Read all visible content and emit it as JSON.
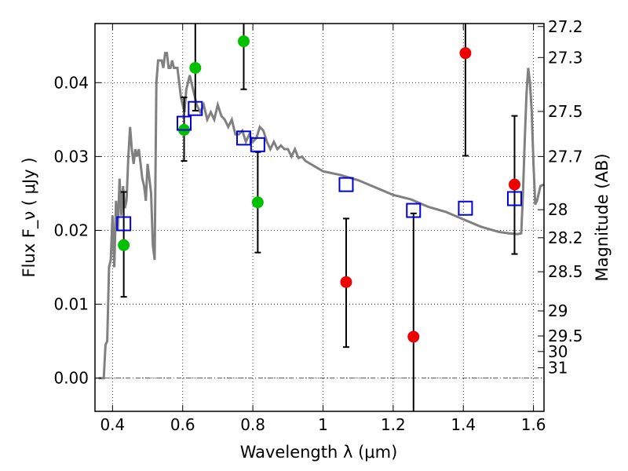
{
  "chart_data": {
    "type": "scatter",
    "xlabel": "Wavelength  λ (μm)",
    "ylabel": "Flux  F_ν  ( μJy )",
    "ylabel_right": "Magnitude (AB)",
    "xlim": [
      0.35,
      1.63
    ],
    "ylim": [
      -0.0045,
      0.048
    ],
    "xticks": [
      {
        "value": 0.4,
        "label": "0.4"
      },
      {
        "value": 0.6,
        "label": "0.6"
      },
      {
        "value": 0.8,
        "label": "0.8"
      },
      {
        "value": 1.0,
        "label": "1"
      },
      {
        "value": 1.2,
        "label": "1.2"
      },
      {
        "value": 1.4,
        "label": "1.4"
      },
      {
        "value": 1.6,
        "label": "1.6"
      }
    ],
    "yticks": [
      {
        "value": 0.0,
        "label": "0.00"
      },
      {
        "value": 0.01,
        "label": "0.01"
      },
      {
        "value": 0.02,
        "label": "0.02"
      },
      {
        "value": 0.03,
        "label": "0.03"
      },
      {
        "value": 0.04,
        "label": "0.04"
      }
    ],
    "right_ticks": [
      {
        "label": "27.2",
        "flux": 0.0476
      },
      {
        "label": "27.3",
        "flux": 0.0434
      },
      {
        "label": "27.5",
        "flux": 0.0361
      },
      {
        "label": "27.7",
        "flux": 0.03
      },
      {
        "label": "28",
        "flux": 0.0228
      },
      {
        "label": "28.2",
        "flux": 0.019
      },
      {
        "label": "28.5",
        "flux": 0.0144
      },
      {
        "label": "29",
        "flux": 0.0091
      },
      {
        "label": "29.5",
        "flux": 0.0057
      },
      {
        "label": "30",
        "flux": 0.0036
      },
      {
        "label": "31",
        "flux": 0.0014
      }
    ],
    "grid": true,
    "colors": {
      "model": "#808080",
      "green": "#00c000",
      "red": "#ee0000",
      "box": "#0000dd",
      "errorbar": "#000000"
    },
    "model_curve": {
      "x": [
        0.36,
        0.375,
        0.38,
        0.385,
        0.39,
        0.395,
        0.4,
        0.405,
        0.41,
        0.415,
        0.42,
        0.425,
        0.43,
        0.435,
        0.44,
        0.445,
        0.45,
        0.455,
        0.46,
        0.465,
        0.47,
        0.475,
        0.48,
        0.485,
        0.49,
        0.495,
        0.5,
        0.505,
        0.51,
        0.515,
        0.52,
        0.525,
        0.53,
        0.535,
        0.54,
        0.545,
        0.55,
        0.555,
        0.56,
        0.565,
        0.57,
        0.575,
        0.58,
        0.585,
        0.59,
        0.595,
        0.6,
        0.605,
        0.61,
        0.615,
        0.62,
        0.625,
        0.63,
        0.64,
        0.65,
        0.66,
        0.67,
        0.68,
        0.69,
        0.7,
        0.71,
        0.72,
        0.73,
        0.74,
        0.75,
        0.76,
        0.77,
        0.78,
        0.79,
        0.8,
        0.81,
        0.82,
        0.83,
        0.84,
        0.85,
        0.86,
        0.87,
        0.88,
        0.89,
        0.9,
        0.91,
        0.92,
        0.93,
        0.94,
        0.95,
        1.0,
        1.05,
        1.1,
        1.15,
        1.2,
        1.25,
        1.3,
        1.35,
        1.4,
        1.45,
        1.5,
        1.53,
        1.555,
        1.565,
        1.57,
        1.575,
        1.58,
        1.585,
        1.59,
        1.595,
        1.6,
        1.605,
        1.61,
        1.62,
        1.63
      ],
      "y": [
        0.0,
        0.0,
        0.0045,
        0.005,
        0.015,
        0.016,
        0.022,
        0.015,
        0.024,
        0.02,
        0.027,
        0.022,
        0.026,
        0.023,
        0.024,
        0.03,
        0.034,
        0.031,
        0.029,
        0.031,
        0.03,
        0.031,
        0.029,
        0.027,
        0.026,
        0.024,
        0.029,
        0.027,
        0.025,
        0.018,
        0.016,
        0.04,
        0.043,
        0.043,
        0.043,
        0.042,
        0.044,
        0.044,
        0.042,
        0.042,
        0.043,
        0.042,
        0.042,
        0.042,
        0.04,
        0.038,
        0.037,
        0.036,
        0.039,
        0.04,
        0.041,
        0.04,
        0.039,
        0.037,
        0.036,
        0.037,
        0.035,
        0.036,
        0.035,
        0.037,
        0.0355,
        0.035,
        0.034,
        0.035,
        0.033,
        0.033,
        0.0335,
        0.032,
        0.033,
        0.032,
        0.0325,
        0.034,
        0.0335,
        0.032,
        0.031,
        0.032,
        0.031,
        0.0315,
        0.031,
        0.031,
        0.03,
        0.031,
        0.0298,
        0.03,
        0.0294,
        0.028,
        0.0275,
        0.0268,
        0.0258,
        0.0248,
        0.0242,
        0.0232,
        0.0225,
        0.0215,
        0.0205,
        0.0198,
        0.0196,
        0.0195,
        0.0196,
        0.025,
        0.032,
        0.0385,
        0.042,
        0.04,
        0.036,
        0.029,
        0.0235,
        0.024,
        0.026,
        0.0262
      ]
    },
    "green_points": [
      {
        "x": 0.432,
        "y": 0.018
      },
      {
        "x": 0.604,
        "y": 0.0336
      },
      {
        "x": 0.636,
        "y": 0.042
      },
      {
        "x": 0.774,
        "y": 0.0456
      },
      {
        "x": 0.814,
        "y": 0.0238
      }
    ],
    "red_points": [
      {
        "x": 1.066,
        "y": 0.013
      },
      {
        "x": 1.258,
        "y": 0.0056
      },
      {
        "x": 1.406,
        "y": 0.044
      },
      {
        "x": 1.546,
        "y": 0.0262
      }
    ],
    "box_points": [
      {
        "x": 0.432,
        "y": 0.0209
      },
      {
        "x": 0.604,
        "y": 0.0345
      },
      {
        "x": 0.636,
        "y": 0.0365
      },
      {
        "x": 0.774,
        "y": 0.0325
      },
      {
        "x": 0.814,
        "y": 0.0316
      },
      {
        "x": 1.066,
        "y": 0.0262
      },
      {
        "x": 1.258,
        "y": 0.0227
      },
      {
        "x": 1.406,
        "y": 0.023
      },
      {
        "x": 1.546,
        "y": 0.0243
      }
    ],
    "error_bars": [
      {
        "x": 0.432,
        "ylow": 0.011,
        "yhigh": 0.0252
      },
      {
        "x": 0.604,
        "ylow": 0.0294,
        "yhigh": 0.038
      },
      {
        "x": 0.636,
        "ylow": 0.0362,
        "yhigh": 0.048
      },
      {
        "x": 0.774,
        "ylow": 0.0391,
        "yhigh": 0.048
      },
      {
        "x": 0.814,
        "ylow": 0.017,
        "yhigh": 0.0306
      },
      {
        "x": 1.066,
        "ylow": 0.0042,
        "yhigh": 0.0216
      },
      {
        "x": 1.258,
        "ylow": -0.0045,
        "yhigh": 0.0223
      },
      {
        "x": 1.406,
        "ylow": 0.0301,
        "yhigh": 0.048
      },
      {
        "x": 1.546,
        "ylow": 0.0168,
        "yhigh": 0.0355
      }
    ]
  }
}
